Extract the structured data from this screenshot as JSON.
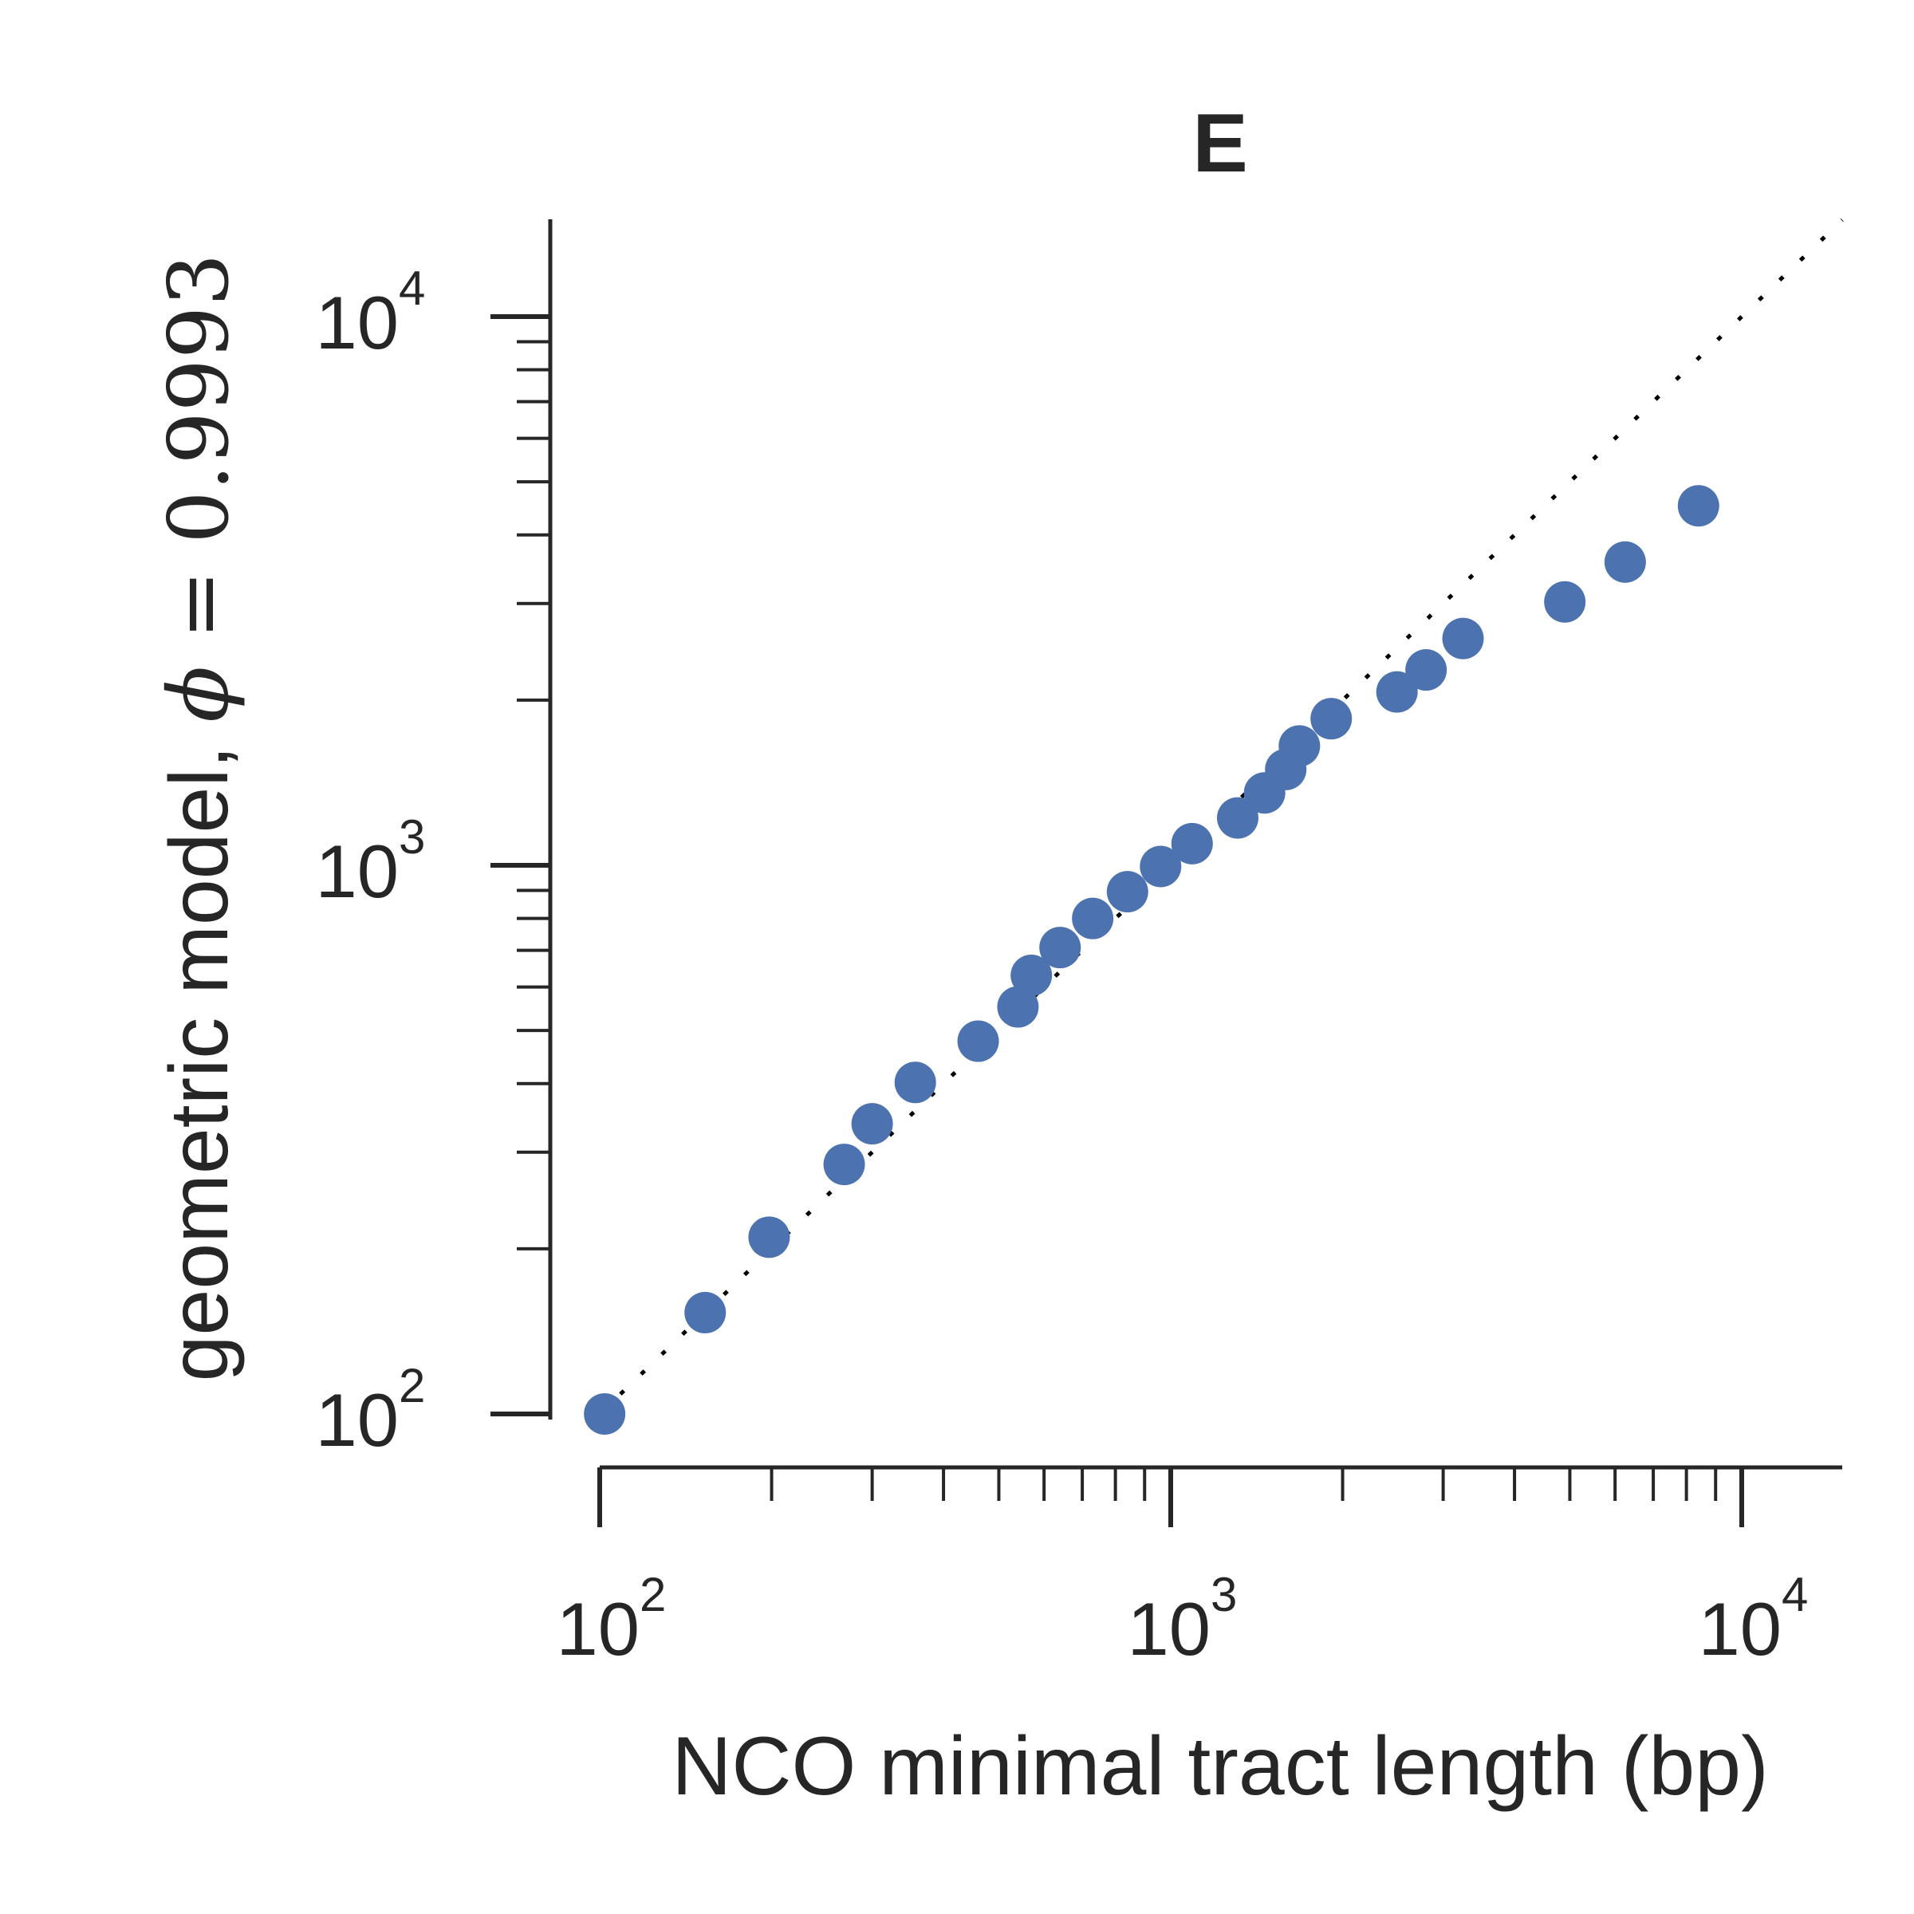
{
  "chart_data": {
    "type": "scatter",
    "title": "E",
    "xlabel": "NCO minimal tract length (bp)",
    "ylabel": "geometric model, ϕ = 0.9993",
    "xscale": "log",
    "yscale": "log",
    "xlim": [
      100,
      15000
    ],
    "ylim": [
      85,
      15000
    ],
    "xticks": [
      {
        "value": 100,
        "base": "10",
        "exp": "2"
      },
      {
        "value": 1000,
        "base": "10",
        "exp": "3"
      },
      {
        "value": 10000,
        "base": "10",
        "exp": "4"
      }
    ],
    "yticks": [
      {
        "value": 100,
        "base": "10",
        "exp": "2"
      },
      {
        "value": 1000,
        "base": "10",
        "exp": "3"
      },
      {
        "value": 10000,
        "base": "10",
        "exp": "4"
      }
    ],
    "grid": false,
    "marker_color": "#4c72b0",
    "reference_line": {
      "style": "dotted",
      "color": "#000000",
      "description": "y = x"
    },
    "points": [
      {
        "x": 102,
        "y": 100
      },
      {
        "x": 153,
        "y": 153
      },
      {
        "x": 198,
        "y": 210
      },
      {
        "x": 268,
        "y": 285
      },
      {
        "x": 300,
        "y": 338
      },
      {
        "x": 357,
        "y": 402
      },
      {
        "x": 460,
        "y": 478
      },
      {
        "x": 540,
        "y": 552
      },
      {
        "x": 570,
        "y": 630
      },
      {
        "x": 640,
        "y": 708
      },
      {
        "x": 730,
        "y": 800
      },
      {
        "x": 840,
        "y": 895
      },
      {
        "x": 960,
        "y": 995
      },
      {
        "x": 1090,
        "y": 1095
      },
      {
        "x": 1310,
        "y": 1220
      },
      {
        "x": 1460,
        "y": 1355
      },
      {
        "x": 1590,
        "y": 1495
      },
      {
        "x": 1680,
        "y": 1650
      },
      {
        "x": 1910,
        "y": 1850
      },
      {
        "x": 2490,
        "y": 2070
      },
      {
        "x": 2800,
        "y": 2270
      },
      {
        "x": 3250,
        "y": 2590
      },
      {
        "x": 4900,
        "y": 3020
      },
      {
        "x": 6250,
        "y": 3570
      },
      {
        "x": 8400,
        "y": 4520
      }
    ]
  }
}
